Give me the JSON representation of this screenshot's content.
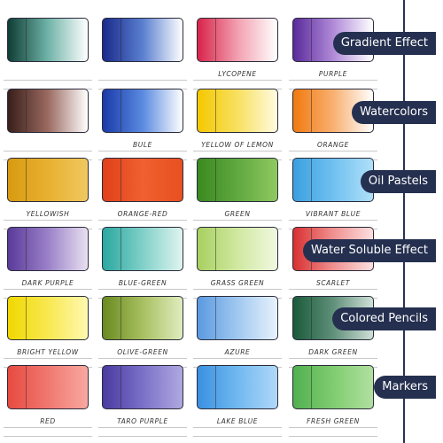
{
  "rows": [
    {
      "tag": "Gradient Effect",
      "swatches": [
        {},
        {},
        {
          "label": "LYCOPENE"
        },
        {
          "label": "PURPLE"
        }
      ]
    },
    {
      "tag": "Watercolors",
      "swatches": [
        {},
        {
          "label": "BULE"
        },
        {
          "label": "YELLOW OF LEMON"
        },
        {
          "label": "ORANGE"
        }
      ]
    },
    {
      "tag": "Oil Pastels",
      "swatches": [
        {
          "label": "YELLOWISH"
        },
        {
          "label": "ORANGE-RED"
        },
        {
          "label": "GREEN"
        },
        {
          "label": "VIBRANT BLUE"
        }
      ]
    },
    {
      "tag": "Water Soluble Effect",
      "swatches": [
        {
          "label": "DARK PURPLE"
        },
        {
          "label": "BLUE-GREEN"
        },
        {
          "label": "GRASS GREEN"
        },
        {
          "label": "SCARLET"
        }
      ]
    },
    {
      "tag": "Colored Pencils",
      "swatches": [
        {
          "label": "BRIGHT YELLOW"
        },
        {
          "label": "OLIVE-GREEN"
        },
        {
          "label": "AZURE"
        },
        {
          "label": "DARK GREEN"
        }
      ]
    },
    {
      "tag": "Markers",
      "swatches": [
        {
          "label": "RED"
        },
        {
          "label": "TARO PURPLE"
        },
        {
          "label": "LAKE BLUE"
        },
        {
          "label": "FRESH GREEN"
        }
      ]
    }
  ]
}
